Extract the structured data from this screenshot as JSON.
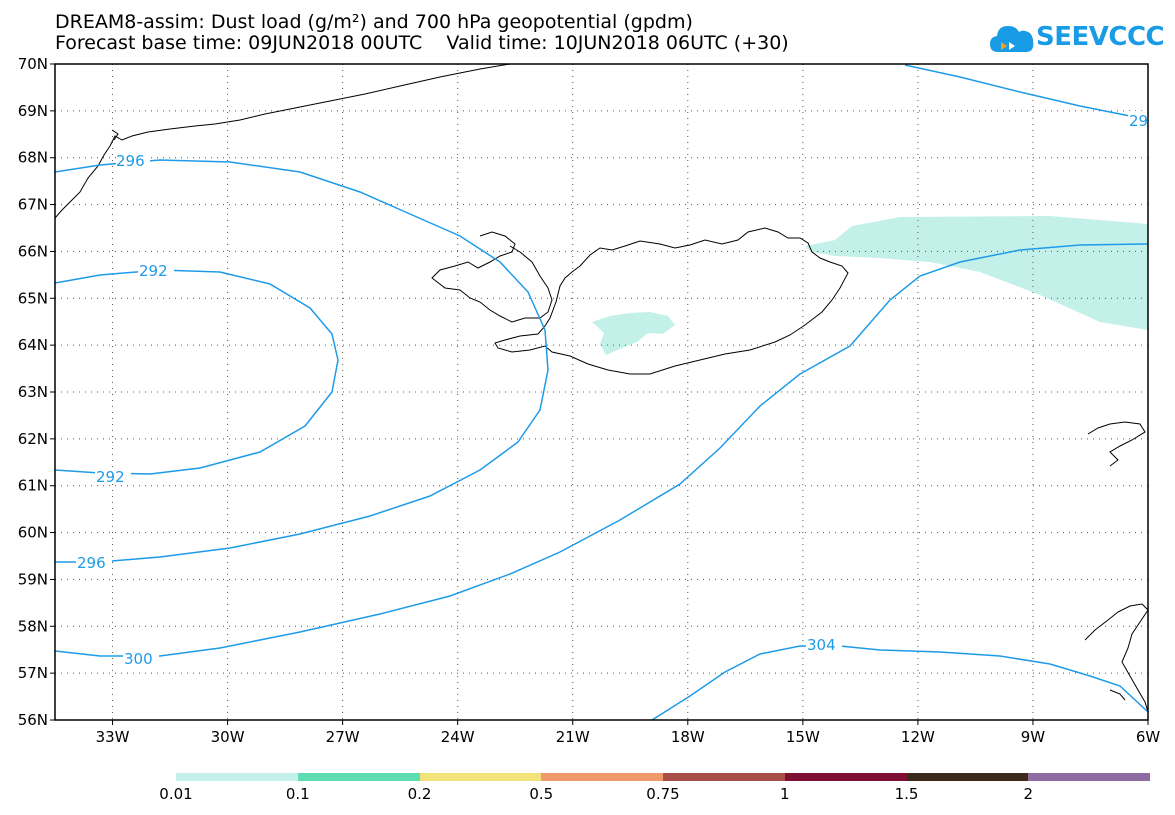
{
  "title": {
    "line1": "DREAM8-assim: Dust load (g/m²) and 700 hPa geopotential (gpdm)",
    "line2": "Forecast base time: 09JUN2018 00UTC    Valid time: 10JUN2018 06UTC (+30)"
  },
  "logo": {
    "text": "SEEVCCC",
    "icon": "cloud-icon",
    "color": "#1a9be6"
  },
  "map": {
    "lon_range": [
      -34.5,
      -6
    ],
    "lat_range": [
      56,
      70
    ],
    "lat_ticks": [
      "70N",
      "69N",
      "68N",
      "67N",
      "66N",
      "65N",
      "64N",
      "63N",
      "62N",
      "61N",
      "60N",
      "59N",
      "58N",
      "57N",
      "56N"
    ],
    "lon_ticks": [
      "33W",
      "30W",
      "27W",
      "24W",
      "21W",
      "18W",
      "15W",
      "12W",
      "9W",
      "6W"
    ],
    "contour_color": "#1e9be8",
    "contour_labels": [
      "296",
      "292",
      "292",
      "296",
      "300",
      "304",
      "29"
    ],
    "dust_fill_color": "#c4f0ea",
    "grid": "dotted"
  },
  "colorbar": {
    "colors": [
      "#c4f0ea",
      "#5fdcb2",
      "#f1e27a",
      "#ef9a6c",
      "#a84f47",
      "#7e0f33",
      "#3b2a1b",
      "#8f6ba3"
    ],
    "labels": [
      "0.01",
      "0.1",
      "0.2",
      "0.5",
      "0.75",
      "1",
      "1.5",
      "2"
    ]
  }
}
